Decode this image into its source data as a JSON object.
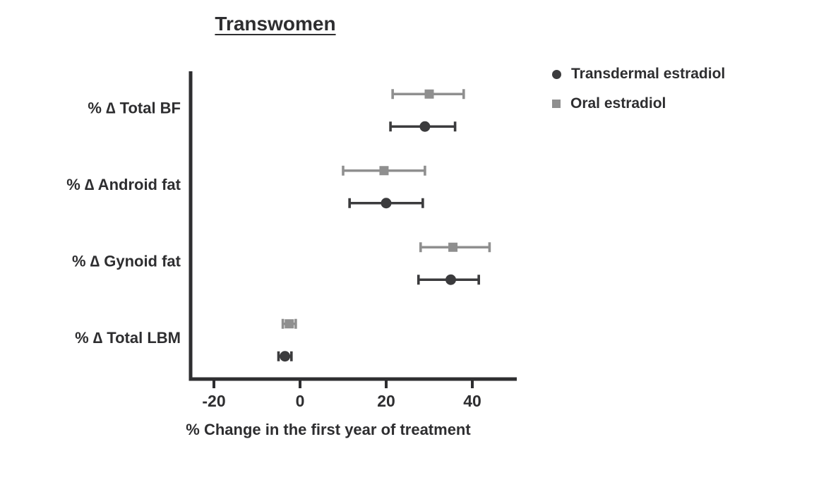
{
  "title": "Transwomen",
  "legend": [
    {
      "label": "Transdermal estradiol",
      "marker": "circle",
      "color": "#3b3b3d"
    },
    {
      "label": "Oral estradiol",
      "marker": "square",
      "color": "#8f8f8f"
    }
  ],
  "chart_data": {
    "type": "scatter",
    "subtype": "horizontal-dot-plot-with-error-bars",
    "title": "Transwomen",
    "xlabel": "% Change in the first year of treatment",
    "ylabel": "",
    "xlim": [
      -33,
      50
    ],
    "xticks": [
      -20,
      0,
      20,
      40
    ],
    "grid": false,
    "legend_position": "top-right",
    "categories": [
      "% ∆ Total BF",
      "% ∆ Android fat",
      "% ∆ Gynoid fat",
      "% ∆ Total LBM"
    ],
    "series": [
      {
        "name": "Oral estradiol",
        "marker": "square",
        "color": "#8f8f8f",
        "values": [
          30,
          19.5,
          35.5,
          -2.5
        ],
        "ci_low": [
          21.5,
          10,
          28,
          -4
        ],
        "ci_high": [
          38,
          29,
          44,
          -1
        ]
      },
      {
        "name": "Transdermal estradiol",
        "marker": "circle",
        "color": "#3b3b3d",
        "values": [
          29,
          20,
          35,
          -3.5
        ],
        "ci_low": [
          21,
          11.5,
          27.5,
          -5
        ],
        "ci_high": [
          36,
          28.5,
          41.5,
          -2
        ]
      }
    ]
  }
}
